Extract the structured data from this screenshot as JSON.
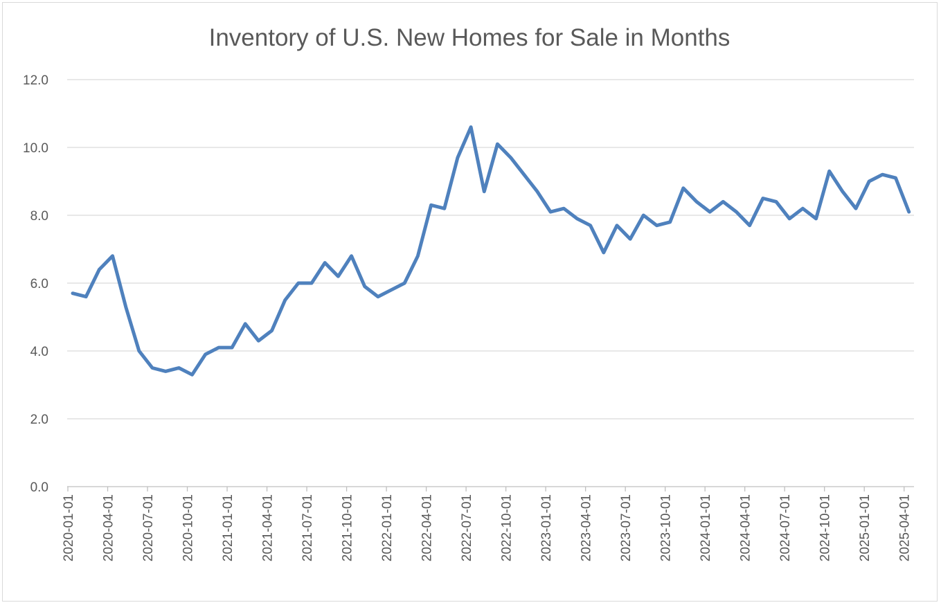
{
  "chart_data": {
    "type": "line",
    "title": "Inventory of U.S. New Homes for Sale in Months",
    "xlabel": "",
    "ylabel": "",
    "ylim": [
      0,
      12
    ],
    "yticks": [
      "0.0",
      "2.0",
      "4.0",
      "6.0",
      "8.0",
      "10.0",
      "12.0"
    ],
    "ytick_values": [
      0,
      2,
      4,
      6,
      8,
      10,
      12
    ],
    "xtick_labels": [
      "2020-01-01",
      "2020-04-01",
      "2020-07-01",
      "2020-10-01",
      "2021-01-01",
      "2021-04-01",
      "2021-07-01",
      "2021-10-01",
      "2022-01-01",
      "2022-04-01",
      "2022-07-01",
      "2022-10-01",
      "2023-01-01",
      "2023-04-01",
      "2023-07-01",
      "2023-10-01",
      "2024-01-01",
      "2024-04-01",
      "2024-07-01",
      "2024-10-01",
      "2025-01-01",
      "2025-04-01"
    ],
    "grid": true,
    "legend": "none",
    "colors": {
      "series": "#4f81bd",
      "grid": "#d9d9d9",
      "text": "#595959"
    },
    "x": [
      "2020-01-01",
      "2020-02-01",
      "2020-03-01",
      "2020-04-01",
      "2020-05-01",
      "2020-06-01",
      "2020-07-01",
      "2020-08-01",
      "2020-09-01",
      "2020-10-01",
      "2020-11-01",
      "2020-12-01",
      "2021-01-01",
      "2021-02-01",
      "2021-03-01",
      "2021-04-01",
      "2021-05-01",
      "2021-06-01",
      "2021-07-01",
      "2021-08-01",
      "2021-09-01",
      "2021-10-01",
      "2021-11-01",
      "2021-12-01",
      "2022-01-01",
      "2022-02-01",
      "2022-03-01",
      "2022-04-01",
      "2022-05-01",
      "2022-06-01",
      "2022-07-01",
      "2022-08-01",
      "2022-09-01",
      "2022-10-01",
      "2022-11-01",
      "2022-12-01",
      "2023-01-01",
      "2023-02-01",
      "2023-03-01",
      "2023-04-01",
      "2023-05-01",
      "2023-06-01",
      "2023-07-01",
      "2023-08-01",
      "2023-09-01",
      "2023-10-01",
      "2023-11-01",
      "2023-12-01",
      "2024-01-01",
      "2024-02-01",
      "2024-03-01",
      "2024-04-01",
      "2024-05-01",
      "2024-06-01",
      "2024-07-01",
      "2024-08-01",
      "2024-09-01",
      "2024-10-01",
      "2024-11-01",
      "2024-12-01",
      "2025-01-01",
      "2025-02-01",
      "2025-03-01",
      "2025-04-01"
    ],
    "series": [
      {
        "values": [
          5.7,
          5.6,
          6.4,
          6.8,
          5.3,
          4.0,
          3.5,
          3.4,
          3.5,
          3.3,
          3.9,
          4.1,
          4.1,
          4.8,
          4.3,
          4.6,
          5.5,
          6.0,
          6.0,
          6.6,
          6.2,
          6.8,
          5.9,
          5.6,
          5.8,
          6.0,
          6.8,
          8.3,
          8.2,
          9.7,
          10.6,
          8.7,
          10.1,
          9.7,
          9.2,
          8.7,
          8.1,
          8.2,
          7.9,
          7.7,
          6.9,
          7.7,
          7.3,
          8.0,
          7.7,
          7.8,
          8.8,
          8.4,
          8.1,
          8.4,
          8.1,
          7.7,
          8.5,
          8.4,
          7.9,
          8.2,
          7.9,
          9.3,
          8.7,
          8.2,
          9.0,
          9.2,
          9.1,
          8.1
        ]
      }
    ]
  }
}
